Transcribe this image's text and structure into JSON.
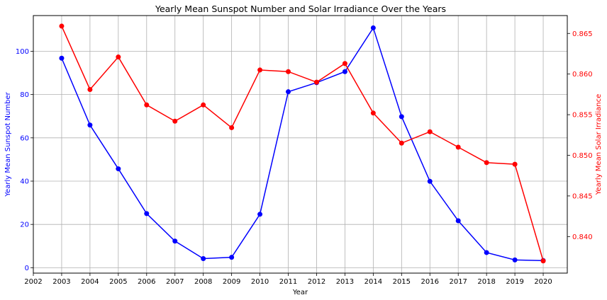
{
  "chart_data": {
    "type": "line",
    "title": "Yearly Mean Sunspot Number and Solar Irradiance Over the Years",
    "xlabel": "Year",
    "xlim": [
      2002,
      2020.85
    ],
    "x_ticks": [
      2002,
      2003,
      2004,
      2005,
      2006,
      2007,
      2008,
      2009,
      2010,
      2011,
      2012,
      2013,
      2014,
      2015,
      2016,
      2017,
      2018,
      2019,
      2020
    ],
    "x": [
      2003,
      2004,
      2005,
      2006,
      2007,
      2008,
      2009,
      2010,
      2011,
      2012,
      2013,
      2014,
      2015,
      2016,
      2017,
      2018,
      2019,
      2020
    ],
    "grid": true,
    "left_axis": {
      "label": "Yearly Mean Sunspot Number",
      "color": "#0000ff",
      "ylim": [
        -2.5,
        116.5
      ],
      "ticks": [
        0,
        20,
        40,
        60,
        80,
        100
      ]
    },
    "right_axis": {
      "label": "Yearly Mean Solar Irradiance",
      "color": "#ff0000",
      "ylim": [
        0.8355,
        0.8672
      ],
      "ticks": [
        0.84,
        0.845,
        0.85,
        0.855,
        0.86,
        0.865
      ],
      "tick_labels": [
        "0.840",
        "0.845",
        "0.850",
        "0.855",
        "0.860",
        "0.865"
      ]
    },
    "series": [
      {
        "axis": "left",
        "color": "#0000ff",
        "values": [
          96.8,
          65.9,
          45.7,
          25.0,
          12.3,
          4.2,
          4.8,
          24.7,
          81.3,
          85.5,
          90.6,
          110.8,
          69.8,
          39.9,
          21.7,
          7.0,
          3.6,
          3.3
        ]
      },
      {
        "axis": "right",
        "color": "#ff0000",
        "values": [
          0.8659,
          0.8581,
          0.8621,
          0.8562,
          0.8542,
          0.8562,
          0.8534,
          0.8605,
          0.8603,
          0.859,
          0.8613,
          0.8552,
          0.8515,
          0.8529,
          0.851,
          0.8491,
          0.8489,
          0.837
        ]
      }
    ]
  }
}
